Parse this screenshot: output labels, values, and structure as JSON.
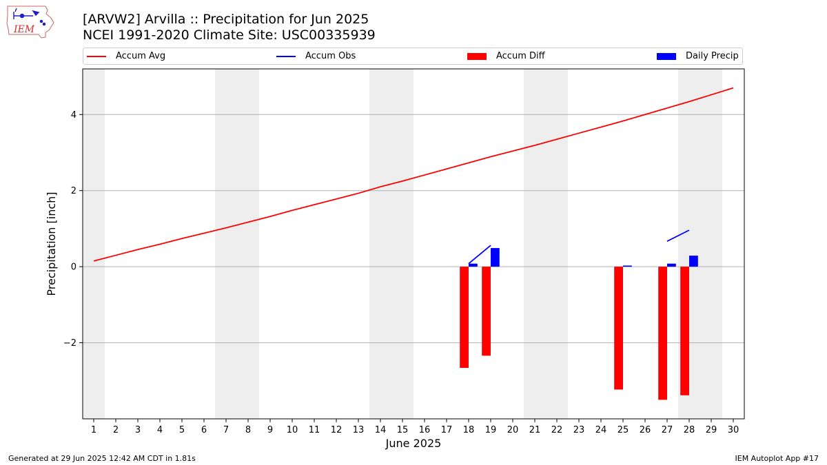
{
  "header": {
    "title_line1": "[ARVW2] Arvilla :: Precipitation for Jun 2025",
    "title_line2": "NCEI 1991-2020 Climate Site: USC00335939"
  },
  "logo": {
    "text": "IEM"
  },
  "footer": {
    "left": "Generated at 29 Jun 2025 12:42 AM CDT in 1.81s",
    "right": "IEM Autoplot App #17"
  },
  "legend": [
    {
      "label": "Accum Avg",
      "kind": "line",
      "color": "#ff0000"
    },
    {
      "label": "Accum Obs",
      "kind": "line",
      "color": "#0000ff"
    },
    {
      "label": "Accum Diff",
      "kind": "bar",
      "color": "#ff0000"
    },
    {
      "label": "Daily Precip",
      "kind": "bar",
      "color": "#0000ff"
    }
  ],
  "chart_data": {
    "type": "bar",
    "title": "[ARVW2] Arvilla :: Precipitation for Jun 2025",
    "xlabel": "June 2025",
    "ylabel": "Precipitation [inch]",
    "xlim": [
      0.5,
      30.5
    ],
    "ylim": [
      -4.0,
      5.2
    ],
    "x_ticks": [
      1,
      2,
      3,
      4,
      5,
      6,
      7,
      8,
      9,
      10,
      11,
      12,
      13,
      14,
      15,
      16,
      17,
      18,
      19,
      20,
      21,
      22,
      23,
      24,
      25,
      26,
      27,
      28,
      29,
      30
    ],
    "y_ticks": [
      -2,
      0,
      2,
      4
    ],
    "y_tick_labels": [
      "−2",
      "0",
      "2",
      "4"
    ],
    "grid": "horizontal",
    "weekend_shading_days": [
      1,
      7,
      8,
      14,
      15,
      21,
      22,
      28,
      29
    ],
    "shading_color": "#eeeeee",
    "series": [
      {
        "name": "Accum Avg",
        "kind": "line",
        "color": "#ff0000",
        "x": [
          1,
          2,
          3,
          4,
          5,
          6,
          7,
          8,
          9,
          10,
          11,
          12,
          13,
          14,
          15,
          16,
          17,
          18,
          19,
          20,
          21,
          22,
          23,
          24,
          25,
          26,
          27,
          28,
          29,
          30
        ],
        "values": [
          0.15,
          0.3,
          0.45,
          0.59,
          0.74,
          0.88,
          1.02,
          1.17,
          1.32,
          1.48,
          1.63,
          1.78,
          1.93,
          2.1,
          2.25,
          2.41,
          2.57,
          2.73,
          2.89,
          3.04,
          3.19,
          3.35,
          3.51,
          3.67,
          3.83,
          4.0,
          4.17,
          4.34,
          4.52,
          4.7
        ]
      },
      {
        "name": "Accum Obs",
        "kind": "line",
        "color": "#0000ff",
        "segments": [
          {
            "x": [
              18,
              19
            ],
            "values": [
              0.08,
              0.56
            ]
          },
          {
            "x": [
              27,
              28
            ],
            "values": [
              0.67,
              0.96
            ]
          }
        ]
      },
      {
        "name": "Accum Diff",
        "kind": "bar",
        "color": "#ff0000",
        "x": [
          18,
          19,
          25,
          27,
          28
        ],
        "values": [
          -2.66,
          -2.34,
          -3.23,
          -3.5,
          -3.38
        ]
      },
      {
        "name": "Daily Precip",
        "kind": "bar",
        "color": "#0000ff",
        "x": [
          18,
          19,
          25,
          27,
          28
        ],
        "values": [
          0.08,
          0.49,
          0.03,
          0.08,
          0.29
        ]
      }
    ]
  }
}
